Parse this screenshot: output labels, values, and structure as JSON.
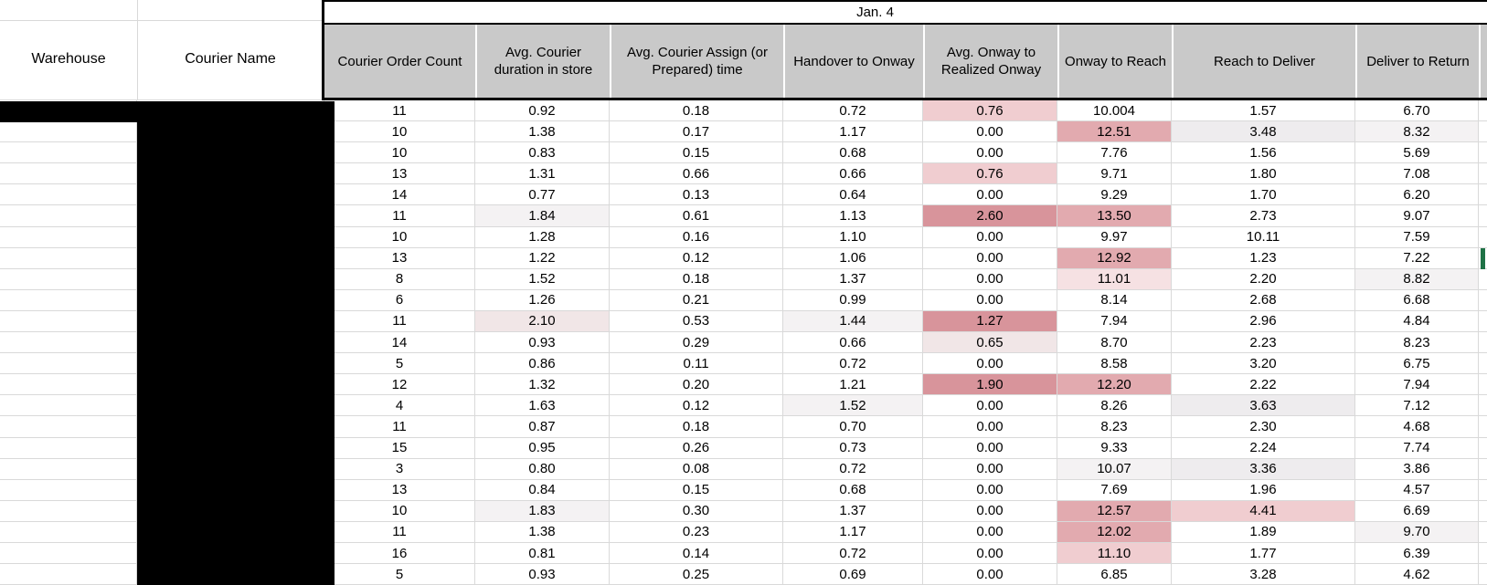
{
  "sheet": {
    "title": "Jan. 4",
    "left_headers": [
      "Warehouse",
      "Courier Name"
    ],
    "columns": [
      "Courier Order Count",
      "Avg. Courier duration in store",
      "Avg. Courier Assign (or Prepared) time",
      "Handover to Onway",
      "Avg. Onway to Realized Onway",
      "Onway to Reach",
      "Reach to Deliver",
      "Deliver to Return"
    ],
    "rows": [
      {
        "values": [
          "11",
          "0.92",
          "0.18",
          "0.72",
          "0.76",
          "10.004",
          "1.57",
          "6.70"
        ],
        "hl": {
          "4": "p2"
        }
      },
      {
        "values": [
          "10",
          "1.38",
          "0.17",
          "1.17",
          "0.00",
          "12.51",
          "3.48",
          "8.32"
        ],
        "hl": {
          "5": "p3",
          "6": "g2",
          "7": "g1"
        }
      },
      {
        "values": [
          "10",
          "0.83",
          "0.15",
          "0.68",
          "0.00",
          "7.76",
          "1.56",
          "5.69"
        ],
        "hl": {}
      },
      {
        "values": [
          "13",
          "1.31",
          "0.66",
          "0.66",
          "0.76",
          "9.71",
          "1.80",
          "7.08"
        ],
        "hl": {
          "4": "p2"
        }
      },
      {
        "values": [
          "14",
          "0.77",
          "0.13",
          "0.64",
          "0.00",
          "9.29",
          "1.70",
          "6.20"
        ],
        "hl": {}
      },
      {
        "values": [
          "11",
          "1.84",
          "0.61",
          "1.13",
          "2.60",
          "13.50",
          "2.73",
          "9.07"
        ],
        "hl": {
          "1": "g1",
          "4": "p4",
          "5": "p3"
        }
      },
      {
        "values": [
          "10",
          "1.28",
          "0.16",
          "1.10",
          "0.00",
          "9.97",
          "10.11",
          "7.59"
        ],
        "hl": {}
      },
      {
        "values": [
          "13",
          "1.22",
          "0.12",
          "1.06",
          "0.00",
          "12.92",
          "1.23",
          "7.22"
        ],
        "hl": {
          "5": "p3"
        }
      },
      {
        "values": [
          "8",
          "1.52",
          "0.18",
          "1.37",
          "0.00",
          "11.01",
          "2.20",
          "8.82"
        ],
        "hl": {
          "5": "p1",
          "7": "g1"
        }
      },
      {
        "values": [
          "6",
          "1.26",
          "0.21",
          "0.99",
          "0.00",
          "8.14",
          "2.68",
          "6.68"
        ],
        "hl": {}
      },
      {
        "values": [
          "11",
          "2.10",
          "0.53",
          "1.44",
          "1.27",
          "7.94",
          "2.96",
          "4.84"
        ],
        "hl": {
          "1": "pg",
          "3": "g1",
          "4": "p4"
        }
      },
      {
        "values": [
          "14",
          "0.93",
          "0.29",
          "0.66",
          "0.65",
          "8.70",
          "2.23",
          "8.23"
        ],
        "hl": {
          "4": "pg"
        }
      },
      {
        "values": [
          "5",
          "0.86",
          "0.11",
          "0.72",
          "0.00",
          "8.58",
          "3.20",
          "6.75"
        ],
        "hl": {}
      },
      {
        "values": [
          "12",
          "1.32",
          "0.20",
          "1.21",
          "1.90",
          "12.20",
          "2.22",
          "7.94"
        ],
        "hl": {
          "4": "p4",
          "5": "p3"
        }
      },
      {
        "values": [
          "4",
          "1.63",
          "0.12",
          "1.52",
          "0.00",
          "8.26",
          "3.63",
          "7.12"
        ],
        "hl": {
          "3": "g1",
          "6": "g2"
        }
      },
      {
        "values": [
          "11",
          "0.87",
          "0.18",
          "0.70",
          "0.00",
          "8.23",
          "2.30",
          "4.68"
        ],
        "hl": {}
      },
      {
        "values": [
          "15",
          "0.95",
          "0.26",
          "0.73",
          "0.00",
          "9.33",
          "2.24",
          "7.74"
        ],
        "hl": {}
      },
      {
        "values": [
          "3",
          "0.80",
          "0.08",
          "0.72",
          "0.00",
          "10.07",
          "3.36",
          "3.86"
        ],
        "hl": {
          "5": "g1",
          "6": "g2"
        }
      },
      {
        "values": [
          "13",
          "0.84",
          "0.15",
          "0.68",
          "0.00",
          "7.69",
          "1.96",
          "4.57"
        ],
        "hl": {}
      },
      {
        "values": [
          "10",
          "1.83",
          "0.30",
          "1.37",
          "0.00",
          "12.57",
          "4.41",
          "6.69"
        ],
        "hl": {
          "1": "g1",
          "5": "p3",
          "6": "p2"
        }
      },
      {
        "values": [
          "11",
          "1.38",
          "0.23",
          "1.17",
          "0.00",
          "12.02",
          "1.89",
          "9.70"
        ],
        "hl": {
          "5": "p3",
          "7": "g1"
        }
      },
      {
        "values": [
          "16",
          "0.81",
          "0.14",
          "0.72",
          "0.00",
          "11.10",
          "1.77",
          "6.39"
        ],
        "hl": {
          "5": "p2"
        }
      },
      {
        "values": [
          "5",
          "0.93",
          "0.25",
          "0.69",
          "0.00",
          "6.85",
          "3.28",
          "4.62"
        ],
        "hl": {}
      }
    ],
    "colors": {
      "header_bg": "#c9c9c9",
      "tint_pink_light": "#f6e1e3",
      "tint_pink_medium_light": "#f0cdd0",
      "tint_pink_medium": "#e2aaaf",
      "tint_pink_dark": "#d8949b",
      "tint_gray_light": "#f4f2f3",
      "tint_gray": "#eeecee",
      "tint_pink_gray": "#f1e6e7",
      "redaction": "#000000",
      "selection_green": "#1f7246",
      "gridline": "#d9d9d9"
    }
  }
}
